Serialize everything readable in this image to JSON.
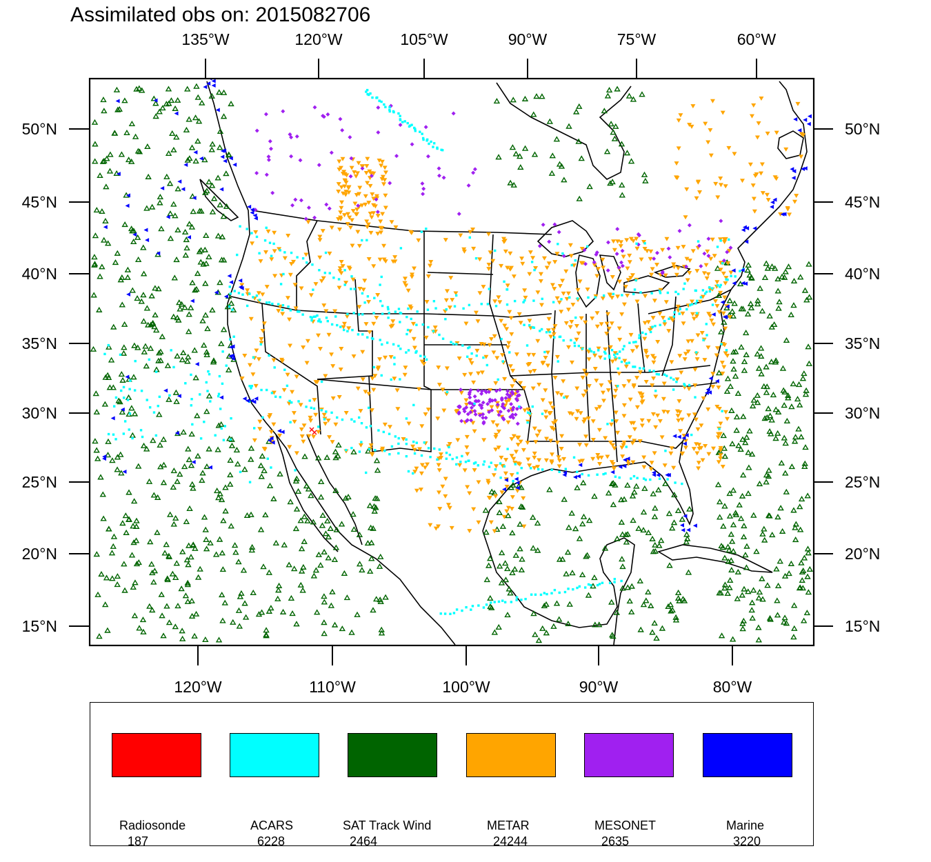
{
  "title": "Assimilated obs on: 2015082706",
  "map": {
    "top_lon_labels": [
      "135°W",
      "120°W",
      "105°W",
      "90°W",
      "75°W",
      "60°W"
    ],
    "bottom_lon_labels": [
      "120°W",
      "110°W",
      "100°W",
      "90°W",
      "80°W"
    ],
    "lat_labels": [
      "50°N",
      "45°N",
      "40°N",
      "35°N",
      "30°N",
      "25°N",
      "20°N",
      "15°N"
    ]
  },
  "legend": {
    "items": [
      {
        "name": "Radiosonde",
        "count": "187",
        "color": "#ff0000",
        "icon": "x-marker"
      },
      {
        "name": "ACARS",
        "count": "6228",
        "color": "#00ffff",
        "icon": "square-marker"
      },
      {
        "name": "SAT Track Wind",
        "count": "2464",
        "color": "#006400",
        "icon": "triangle-up-marker"
      },
      {
        "name": "METAR",
        "count": "24244",
        "color": "#ffa500",
        "icon": "triangle-down-marker"
      },
      {
        "name": "MESONET",
        "count": "2635",
        "color": "#a020f0",
        "icon": "diamond-marker"
      },
      {
        "name": "Marine",
        "count": "3220",
        "color": "#0000ff",
        "icon": "triangle-left-marker"
      }
    ]
  }
}
